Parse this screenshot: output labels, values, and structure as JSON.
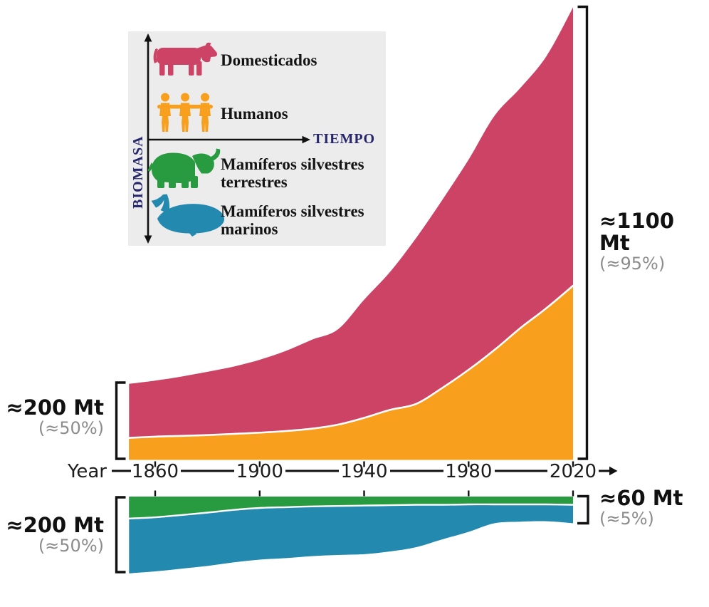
{
  "figure": {
    "annotations": {
      "top_left": {
        "value": "≈200 Mt",
        "pct": "(≈50%)"
      },
      "top_right": {
        "value": "≈1100 Mt",
        "pct": "(≈95%)"
      },
      "bottom_left": {
        "value": "≈200 Mt",
        "pct": "(≈50%)"
      },
      "bottom_right": {
        "value": "≈60 Mt",
        "pct": "(≈5%)"
      }
    }
  },
  "axis": {
    "label": "Year",
    "ticks": [
      "1860",
      "1900",
      "1940",
      "1980",
      "2020"
    ]
  },
  "legend": {
    "y_axis_label": "BIOMASA",
    "x_axis_label": "TIEMPO",
    "items": [
      {
        "id": "domesticados",
        "label": "Domesticados",
        "icon": "cow-icon",
        "color": "#cc4366"
      },
      {
        "id": "humanos",
        "label": "Humanos",
        "icon": "people-icon",
        "color": "#f8a01e"
      },
      {
        "id": "terrestres",
        "label_lines": [
          "Mamíferos silvestres",
          "terrestres"
        ],
        "icon": "elephant-icon",
        "color": "#289a40"
      },
      {
        "id": "marinos",
        "label_lines": [
          "Mamíferos silvestres",
          "marinos"
        ],
        "icon": "whale-icon",
        "color": "#2389af"
      }
    ]
  },
  "colors": {
    "domesticados": "#cc4366",
    "humanos": "#f8a01e",
    "terrestres": "#289a40",
    "marinos": "#2389af",
    "axis_ink": "#111111",
    "muted_gray": "#8c8c8c",
    "navy": "#26266d",
    "legend_bg": "#ececec"
  },
  "chart_data": [
    {
      "type": "area",
      "stacked": true,
      "orientation": "up",
      "unit": "Mt (approx., read from graphic)",
      "x": [
        1850,
        1860,
        1870,
        1880,
        1890,
        1900,
        1910,
        1920,
        1930,
        1940,
        1950,
        1960,
        1970,
        1980,
        1990,
        2000,
        2010,
        2020
      ],
      "x_ticks": [
        1860,
        1900,
        1940,
        1980,
        2020
      ],
      "xlabel": "Year",
      "ylim": [
        0,
        1200
      ],
      "grid": false,
      "series": [
        {
          "name": "Humanos",
          "color": "#f8a01e",
          "values": [
            55,
            58,
            60,
            62,
            65,
            68,
            72,
            78,
            88,
            105,
            125,
            140,
            180,
            225,
            275,
            330,
            380,
            435
          ]
        },
        {
          "name": "Domesticados",
          "color": "#cc4366",
          "values": [
            135,
            140,
            148,
            158,
            168,
            182,
            200,
            222,
            238,
            295,
            345,
            415,
            470,
            525,
            585,
            600,
            630,
            695
          ]
        }
      ],
      "callouts": {
        "start_total": "≈200 Mt (≈50%)",
        "end_total": "≈1100 Mt (≈95%)"
      }
    },
    {
      "type": "area",
      "stacked": true,
      "orientation": "down",
      "unit": "Mt (approx., read from graphic)",
      "x": [
        1850,
        1860,
        1870,
        1880,
        1890,
        1900,
        1910,
        1920,
        1930,
        1940,
        1950,
        1960,
        1970,
        1980,
        1990,
        2000,
        2010,
        2020
      ],
      "ylim": [
        0,
        210
      ],
      "grid": false,
      "series": [
        {
          "name": "Mamíferos silvestres terrestres",
          "color": "#289a40",
          "values": [
            56,
            53,
            47,
            41,
            34,
            29,
            27,
            25,
            24,
            23,
            22,
            21,
            21,
            20,
            20,
            20,
            20,
            21
          ]
        },
        {
          "name": "Mamíferos silvestres marinos",
          "color": "#2389af",
          "values": [
            140,
            138,
            137,
            136,
            134,
            132,
            130,
            127,
            125,
            124,
            118,
            108,
            88,
            70,
            48,
            44,
            43,
            47
          ]
        }
      ],
      "callouts": {
        "start_total": "≈200 Mt (≈50%)",
        "end_total": "≈60 Mt (≈5%)"
      }
    }
  ]
}
